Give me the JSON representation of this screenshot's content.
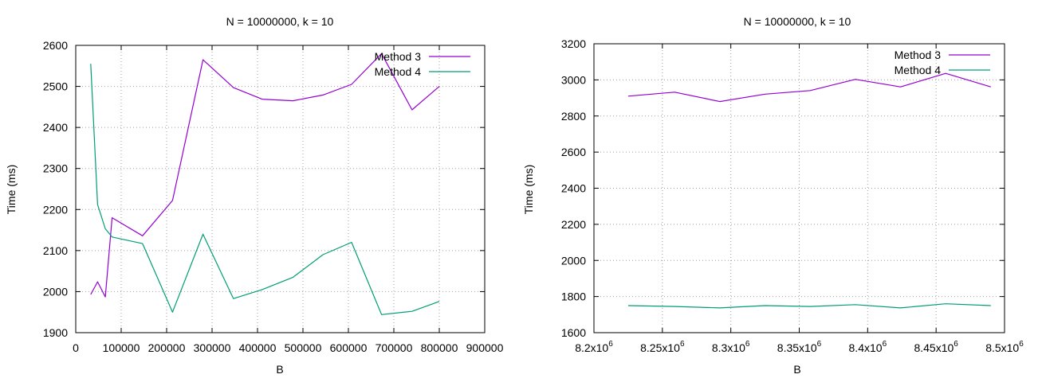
{
  "chart_data": [
    {
      "type": "line",
      "title": "N = 10000000, k = 10",
      "xlabel": "B",
      "ylabel": "Time (ms)",
      "xlim": [
        0,
        900000
      ],
      "ylim": [
        1900,
        2600
      ],
      "x_ticks": [
        0,
        100000,
        200000,
        300000,
        400000,
        500000,
        600000,
        700000,
        800000,
        900000
      ],
      "x_tick_labels": [
        "0",
        "100000",
        "200000",
        "300000",
        "400000",
        "500000",
        "600000",
        "700000",
        "800000",
        "900000"
      ],
      "y_ticks": [
        1900,
        2000,
        2100,
        2200,
        2300,
        2400,
        2500,
        2600
      ],
      "y_tick_labels": [
        "1900",
        "2000",
        "2100",
        "2200",
        "2300",
        "2400",
        "2500",
        "2600"
      ],
      "grid": true,
      "legend_position": "top-right",
      "series": [
        {
          "name": "Method 3",
          "color": "#9400d3",
          "x": [
            33000,
            48000,
            65000,
            80000,
            147000,
            213000,
            280000,
            347000,
            410000,
            478000,
            544000,
            607000,
            673000,
            740000,
            800000
          ],
          "y": [
            1993,
            2024,
            1987,
            2180,
            2136,
            2222,
            2565,
            2497,
            2469,
            2465,
            2479,
            2505,
            2580,
            2443,
            2500
          ]
        },
        {
          "name": "Method 4",
          "color": "#009e73",
          "x": [
            33000,
            48000,
            65000,
            80000,
            147000,
            213000,
            280000,
            347000,
            410000,
            478000,
            544000,
            607000,
            673000,
            740000,
            800000
          ],
          "y": [
            2555,
            2212,
            2153,
            2133,
            2117,
            1950,
            2140,
            1983,
            2005,
            2035,
            2090,
            2120,
            1944,
            1952,
            1976
          ]
        }
      ]
    },
    {
      "type": "line",
      "title": "N = 10000000, k = 10",
      "xlabel": "B",
      "ylabel": "Time (ms)",
      "xlim": [
        8200000,
        8500000
      ],
      "ylim": [
        1600,
        3200
      ],
      "x_ticks": [
        8200000,
        8250000,
        8300000,
        8350000,
        8400000,
        8450000,
        8500000
      ],
      "x_tick_labels": [
        {
          "base": "8.2x10",
          "exp": "6"
        },
        {
          "base": "8.25x10",
          "exp": "6"
        },
        {
          "base": "8.3x10",
          "exp": "6"
        },
        {
          "base": "8.35x10",
          "exp": "6"
        },
        {
          "base": "8.4x10",
          "exp": "6"
        },
        {
          "base": "8.45x10",
          "exp": "6"
        },
        {
          "base": "8.5x10",
          "exp": "6"
        }
      ],
      "y_ticks": [
        1600,
        1800,
        2000,
        2200,
        2400,
        2600,
        2800,
        3000,
        3200
      ],
      "y_tick_labels": [
        "1600",
        "1800",
        "2000",
        "2200",
        "2400",
        "2600",
        "2800",
        "3000",
        "3200"
      ],
      "grid": true,
      "legend_position": "top-right",
      "series": [
        {
          "name": "Method 3",
          "color": "#9400d3",
          "x": [
            8225000,
            8259000,
            8292000,
            8325000,
            8358000,
            8391000,
            8424000,
            8457000,
            8490000
          ],
          "y": [
            2910,
            2932,
            2880,
            2921,
            2941,
            3003,
            2961,
            3036,
            2961
          ]
        },
        {
          "name": "Method 4",
          "color": "#009e73",
          "x": [
            8225000,
            8259000,
            8292000,
            8325000,
            8358000,
            8391000,
            8424000,
            8457000,
            8490000
          ],
          "y": [
            1750,
            1745,
            1737,
            1750,
            1745,
            1755,
            1737,
            1760,
            1750
          ]
        }
      ]
    }
  ]
}
